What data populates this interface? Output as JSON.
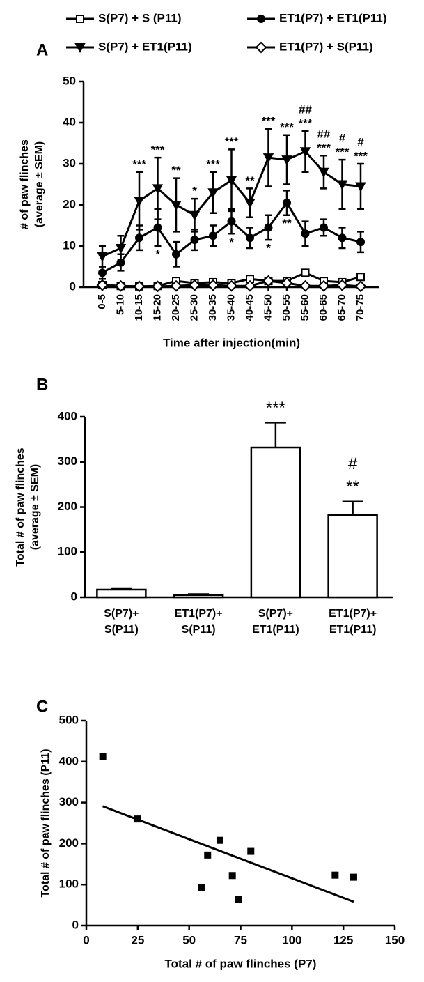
{
  "chart_data": [
    {
      "type": "line",
      "panel": "A",
      "xlabel": "Time after injection(min)",
      "ylabel": [
        "# of paw flinches",
        "(average ± SEM)"
      ],
      "categories": [
        "0-5",
        "5-10",
        "10-15",
        "15-20",
        "20-25",
        "25-30",
        "30-35",
        "35-40",
        "40-45",
        "45-50",
        "50-55",
        "55-60",
        "60-65",
        "65-70",
        "70-75"
      ],
      "ylim": [
        0,
        50
      ],
      "yticks": [
        0,
        10,
        20,
        30,
        40,
        50
      ],
      "series": [
        {
          "name": "S(P7) + S (P11)",
          "color": "#000000",
          "marker": "square",
          "filled": false,
          "values": [
            0.5,
            0.3,
            0.2,
            0.3,
            1.5,
            1,
            1.2,
            1,
            2,
            1.5,
            1.5,
            3.5,
            1.5,
            1.2,
            2.5
          ]
        },
        {
          "name": "ET1(P7) + ET1(P11)",
          "color": "#000000",
          "marker": "circle",
          "filled": true,
          "values": [
            3.5,
            6,
            12,
            14.5,
            8,
            11.5,
            12.5,
            16,
            12,
            14.5,
            20.5,
            13,
            14.5,
            12,
            11
          ],
          "errors": [
            1.5,
            2,
            3,
            4.5,
            3,
            2.5,
            2.5,
            3,
            2.5,
            3,
            3,
            3,
            2,
            2.5,
            2.5
          ],
          "stars": [
            null,
            null,
            null,
            "*",
            null,
            null,
            null,
            "*",
            null,
            "*",
            "**",
            null,
            null,
            null,
            null
          ],
          "stars_position": "below"
        },
        {
          "name": "S(P7) + ET1(P11)",
          "color": "#000000",
          "marker": "triangle-down",
          "filled": true,
          "values": [
            7.5,
            9.5,
            21,
            24,
            20,
            17.5,
            23,
            26,
            20.5,
            31.5,
            31,
            33,
            28,
            25,
            24.5
          ],
          "errors": [
            2.5,
            3,
            7,
            7.5,
            6.5,
            4,
            5,
            7.5,
            3.5,
            7,
            6,
            5,
            4,
            6,
            5.5
          ],
          "stars": [
            null,
            null,
            "***",
            "***",
            "**",
            "*",
            "***",
            "***",
            "**",
            "***",
            "***",
            "***",
            "***",
            "***",
            "***"
          ],
          "stars_position": "above",
          "hashes": [
            null,
            null,
            null,
            null,
            null,
            null,
            null,
            null,
            null,
            null,
            null,
            "##",
            "##",
            "#",
            "#"
          ]
        },
        {
          "name": "ET1(P7) + S(P11)",
          "color": "#000000",
          "marker": "diamond",
          "filled": false,
          "values": [
            0.5,
            0.3,
            0.2,
            0.2,
            0.3,
            0.5,
            0.5,
            0.3,
            0.3,
            1.5,
            1,
            0.3,
            0.3,
            0.5,
            0.2
          ]
        }
      ]
    },
    {
      "type": "bar",
      "panel": "B",
      "ylabel": [
        "Total # of paw flinches",
        "(average ± SEM)"
      ],
      "categories": [
        [
          "S(P7)+",
          "S(P11)"
        ],
        [
          "ET1(P7)+",
          "S(P11)"
        ],
        [
          "S(P7)+",
          "ET1(P11)"
        ],
        [
          "ET1(P7)+",
          "ET1(P11)"
        ]
      ],
      "values": [
        17,
        5,
        332,
        182
      ],
      "errors": [
        3,
        2,
        55,
        30
      ],
      "color": "#ffffff",
      "stars": [
        null,
        null,
        "***",
        "**"
      ],
      "hashes": [
        null,
        null,
        null,
        "#"
      ],
      "ylim": [
        0,
        400
      ],
      "yticks": [
        0,
        100,
        200,
        300,
        400
      ]
    },
    {
      "type": "scatter",
      "panel": "C",
      "xlabel": "Total # of paw flinches (P7)",
      "ylabel": [
        "Total # of paw flinches (P11)"
      ],
      "x": [
        8,
        25,
        56,
        59,
        65,
        71,
        74,
        80,
        121,
        130
      ],
      "values": [
        413,
        260,
        93,
        172,
        208,
        122,
        63,
        181,
        123,
        118
      ],
      "color": "#000000",
      "fit": {
        "x": [
          8,
          130
        ],
        "y": [
          291,
          58
        ]
      },
      "xlim": [
        0,
        150
      ],
      "xticks": [
        0,
        25,
        50,
        75,
        100,
        125,
        150
      ],
      "ylim": [
        0,
        500
      ],
      "yticks": [
        0,
        100,
        200,
        300,
        400,
        500
      ]
    }
  ]
}
